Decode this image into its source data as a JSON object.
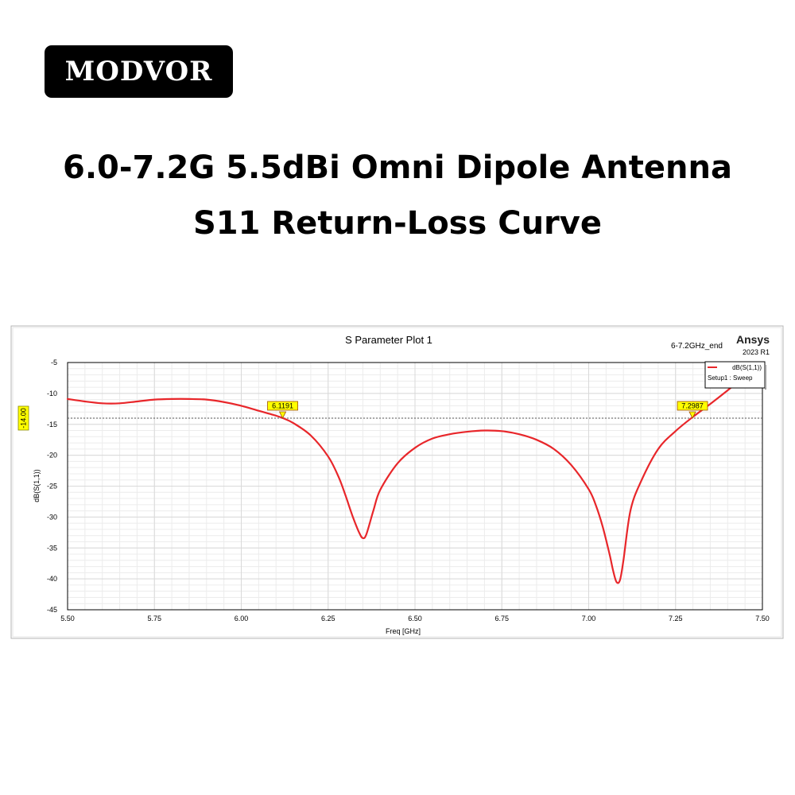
{
  "brand": {
    "name": "MODVOR"
  },
  "headline": {
    "line1": "6.0-7.2G 5.5dBi Omni Dipole Antenna",
    "line2": "S11 Return-Loss Curve"
  },
  "plot_window": {
    "design_name": "6-7.2GHz_end",
    "vendor": "Ansys",
    "version": "2023 R1",
    "legend": {
      "trace": "dB(S(1,1))",
      "setup": "Setup1 : Sweep"
    }
  },
  "colors": {
    "trace": "#e8262a",
    "marker_fill": "#ffff00",
    "grid": "#d9d9d9",
    "frame": "#000000"
  },
  "chart_data": {
    "type": "line",
    "title": "S Parameter Plot 1",
    "xlabel": "Freq [GHz]",
    "ylabel": "dB(S(1,1))",
    "xlim": [
      5.5,
      7.5
    ],
    "ylim": [
      -45,
      -5
    ],
    "xticks": [
      5.5,
      5.75,
      6.0,
      6.25,
      6.5,
      6.75,
      7.0,
      7.25,
      7.5
    ],
    "xtick_labels": [
      "5.50",
      "5.75",
      "6.00",
      "6.25",
      "6.50",
      "6.75",
      "7.00",
      "7.25",
      "7.50"
    ],
    "yticks": [
      -5,
      -10,
      -15,
      -20,
      -25,
      -30,
      -35,
      -40,
      -45
    ],
    "ytick_labels": [
      "-5",
      "-10",
      "-15",
      "-20",
      "-25",
      "-30",
      "-35",
      "-40",
      "-45"
    ],
    "grid": true,
    "legend_position": "top-right",
    "series": [
      {
        "name": "dB(S(1,1))",
        "x": [
          5.5,
          5.55,
          5.6,
          5.65,
          5.7,
          5.75,
          5.8,
          5.85,
          5.9,
          5.95,
          6.0,
          6.05,
          6.1,
          6.12,
          6.15,
          6.2,
          6.25,
          6.28,
          6.3,
          6.32,
          6.34,
          6.35,
          6.36,
          6.38,
          6.4,
          6.45,
          6.5,
          6.55,
          6.6,
          6.65,
          6.7,
          6.75,
          6.8,
          6.85,
          6.9,
          6.95,
          7.0,
          7.02,
          7.04,
          7.06,
          7.07,
          7.08,
          7.09,
          7.1,
          7.12,
          7.15,
          7.2,
          7.25,
          7.3,
          7.35,
          7.4,
          7.43
        ],
        "y": [
          -10.9,
          -11.3,
          -11.6,
          -11.6,
          -11.3,
          -11.0,
          -10.9,
          -10.9,
          -11.0,
          -11.4,
          -12.0,
          -12.8,
          -13.6,
          -14.0,
          -14.8,
          -16.8,
          -20.2,
          -23.5,
          -26.5,
          -29.8,
          -32.6,
          -33.4,
          -32.8,
          -29.0,
          -25.6,
          -21.3,
          -18.8,
          -17.3,
          -16.6,
          -16.2,
          -16.0,
          -16.1,
          -16.6,
          -17.5,
          -19.0,
          -21.6,
          -25.5,
          -28.0,
          -31.5,
          -36.0,
          -38.6,
          -40.5,
          -40.2,
          -37.0,
          -29.0,
          -24.3,
          -19.0,
          -16.1,
          -13.8,
          -11.7,
          -9.5,
          -8.1
        ]
      }
    ],
    "markers": [
      {
        "x": 6.1191,
        "label": "6.1191"
      },
      {
        "x": 7.2987,
        "label": "7.2987"
      }
    ],
    "reference_line": {
      "y": -14.0,
      "label": "-14.00"
    }
  }
}
